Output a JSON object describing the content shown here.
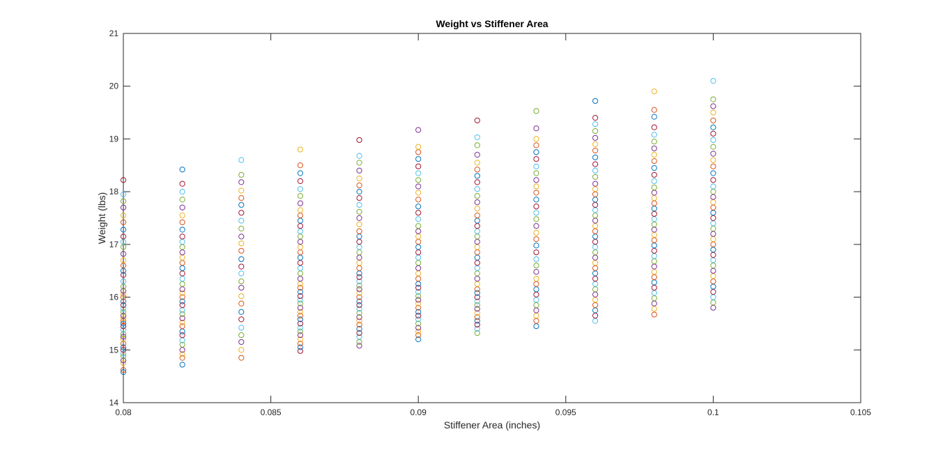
{
  "chart_data": {
    "type": "scatter",
    "title": "Weight vs Stiffener Area",
    "xlabel": "Stiffener Area (inches)",
    "ylabel": "Weight (lbs)",
    "xlim": [
      0.08,
      0.105
    ],
    "ylim": [
      14,
      21
    ],
    "xticks": [
      0.08,
      0.085,
      0.09,
      0.095,
      0.1,
      0.105
    ],
    "xtick_labels": [
      "0.08",
      "0.085",
      "0.09",
      "0.095",
      "0.1",
      "0.105"
    ],
    "yticks": [
      14,
      15,
      16,
      17,
      18,
      19,
      20,
      21
    ],
    "ytick_labels": [
      "14",
      "15",
      "16",
      "17",
      "18",
      "19",
      "20",
      "21"
    ],
    "grid": false,
    "legend": false,
    "marker": "open-circle",
    "colors": [
      "#0072BD",
      "#D95319",
      "#EDB120",
      "#7E2F8E",
      "#77AC30",
      "#4DBEEE",
      "#A2142F"
    ],
    "points": [
      {
        "x": 0.08,
        "y": [
          14.58,
          14.62,
          14.75,
          14.8,
          14.88,
          14.93,
          15.0,
          15.05,
          15.12,
          15.2,
          15.25,
          15.3,
          15.38,
          15.45,
          15.5,
          15.55,
          15.6,
          15.65,
          15.72,
          15.78,
          15.85,
          15.92,
          16.0,
          16.05,
          16.12,
          16.2,
          16.3,
          16.42,
          16.5,
          16.6,
          16.7,
          16.82,
          16.95,
          17.05,
          17.15,
          17.28,
          17.42,
          17.55,
          17.7,
          17.82,
          17.95,
          18.22
        ]
      },
      {
        "x": 0.082,
        "y": [
          14.72,
          14.85,
          14.92,
          15.0,
          15.1,
          15.18,
          15.28,
          15.35,
          15.45,
          15.52,
          15.6,
          15.68,
          15.75,
          15.85,
          15.92,
          16.0,
          16.08,
          16.15,
          16.25,
          16.35,
          16.45,
          16.55,
          16.65,
          16.75,
          16.85,
          16.95,
          17.05,
          17.15,
          17.28,
          17.42,
          17.55,
          17.7,
          17.85,
          18.0,
          18.15,
          18.42
        ]
      },
      {
        "x": 0.084,
        "y": [
          14.85,
          15.0,
          15.15,
          15.28,
          15.42,
          15.58,
          15.72,
          15.88,
          16.02,
          16.18,
          16.3,
          16.45,
          16.58,
          16.72,
          16.88,
          17.02,
          17.15,
          17.3,
          17.45,
          17.6,
          17.75,
          17.88,
          18.02,
          18.18,
          18.32,
          18.6
        ]
      },
      {
        "x": 0.086,
        "y": [
          14.98,
          15.05,
          15.12,
          15.2,
          15.28,
          15.35,
          15.42,
          15.5,
          15.58,
          15.65,
          15.72,
          15.8,
          15.88,
          15.95,
          16.02,
          16.1,
          16.18,
          16.25,
          16.35,
          16.45,
          16.55,
          16.65,
          16.75,
          16.85,
          16.95,
          17.05,
          17.15,
          17.25,
          17.35,
          17.45,
          17.55,
          17.65,
          17.78,
          17.92,
          18.05,
          18.2,
          18.35,
          18.5,
          18.8
        ]
      },
      {
        "x": 0.088,
        "y": [
          15.08,
          15.15,
          15.25,
          15.32,
          15.4,
          15.48,
          15.55,
          15.62,
          15.7,
          15.78,
          15.85,
          15.92,
          16.0,
          16.08,
          16.15,
          16.22,
          16.3,
          16.38,
          16.45,
          16.55,
          16.65,
          16.75,
          16.85,
          16.95,
          17.05,
          17.15,
          17.25,
          17.38,
          17.5,
          17.62,
          17.75,
          17.88,
          18.0,
          18.12,
          18.25,
          18.4,
          18.55,
          18.68,
          18.98
        ]
      },
      {
        "x": 0.09,
        "y": [
          15.2,
          15.28,
          15.35,
          15.42,
          15.5,
          15.58,
          15.65,
          15.72,
          15.8,
          15.88,
          15.95,
          16.02,
          16.1,
          16.18,
          16.25,
          16.35,
          16.45,
          16.55,
          16.65,
          16.75,
          16.85,
          16.95,
          17.05,
          17.15,
          17.25,
          17.35,
          17.48,
          17.6,
          17.72,
          17.85,
          17.98,
          18.1,
          18.22,
          18.35,
          18.48,
          18.62,
          18.75,
          18.85,
          19.17
        ]
      },
      {
        "x": 0.092,
        "y": [
          15.32,
          15.4,
          15.48,
          15.55,
          15.62,
          15.7,
          15.78,
          15.85,
          15.92,
          16.0,
          16.08,
          16.15,
          16.25,
          16.35,
          16.45,
          16.55,
          16.65,
          16.75,
          16.85,
          16.95,
          17.05,
          17.15,
          17.25,
          17.35,
          17.45,
          17.55,
          17.68,
          17.8,
          17.92,
          18.05,
          18.18,
          18.3,
          18.42,
          18.55,
          18.7,
          18.88,
          19.03,
          19.35
        ]
      },
      {
        "x": 0.094,
        "y": [
          15.45,
          15.55,
          15.65,
          15.75,
          15.85,
          15.95,
          16.05,
          16.15,
          16.25,
          16.35,
          16.48,
          16.6,
          16.72,
          16.85,
          16.98,
          17.1,
          17.22,
          17.35,
          17.48,
          17.6,
          17.72,
          17.85,
          17.98,
          18.1,
          18.22,
          18.35,
          18.48,
          18.62,
          18.75,
          18.88,
          19.0,
          19.2,
          19.53
        ]
      },
      {
        "x": 0.096,
        "y": [
          15.55,
          15.65,
          15.75,
          15.85,
          15.95,
          16.05,
          16.15,
          16.25,
          16.35,
          16.45,
          16.55,
          16.65,
          16.75,
          16.85,
          16.95,
          17.05,
          17.15,
          17.25,
          17.35,
          17.45,
          17.55,
          17.65,
          17.75,
          17.85,
          17.95,
          18.05,
          18.15,
          18.28,
          18.4,
          18.52,
          18.65,
          18.78,
          18.9,
          19.02,
          19.15,
          19.28,
          19.4,
          19.72
        ]
      },
      {
        "x": 0.098,
        "y": [
          15.67,
          15.78,
          15.88,
          15.98,
          16.08,
          16.18,
          16.28,
          16.38,
          16.48,
          16.58,
          16.68,
          16.78,
          16.88,
          16.98,
          17.08,
          17.18,
          17.28,
          17.38,
          17.48,
          17.58,
          17.68,
          17.78,
          17.88,
          17.98,
          18.08,
          18.2,
          18.32,
          18.45,
          18.58,
          18.7,
          18.82,
          18.95,
          19.08,
          19.22,
          19.42,
          19.55,
          19.9
        ]
      },
      {
        "x": 0.1,
        "y": [
          15.8,
          15.9,
          16.0,
          16.1,
          16.2,
          16.3,
          16.4,
          16.5,
          16.6,
          16.7,
          16.8,
          16.9,
          17.0,
          17.1,
          17.2,
          17.3,
          17.4,
          17.5,
          17.6,
          17.7,
          17.8,
          17.9,
          18.0,
          18.1,
          18.22,
          18.35,
          18.48,
          18.6,
          18.72,
          18.85,
          18.98,
          19.1,
          19.22,
          19.35,
          19.5,
          19.62,
          19.75,
          20.1
        ]
      }
    ]
  }
}
